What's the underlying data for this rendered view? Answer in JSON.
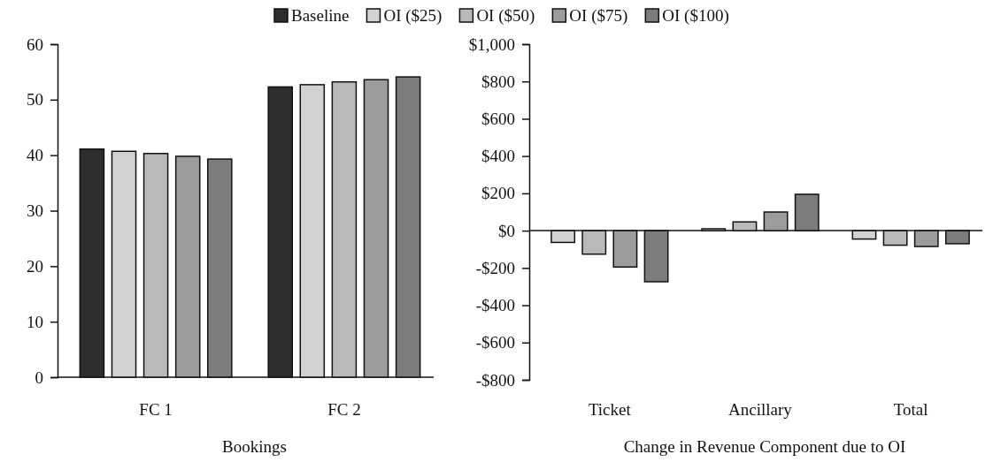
{
  "chart_data": [
    {
      "type": "bar",
      "xlabel": "Bookings",
      "categories": [
        "FC 1",
        "FC 2"
      ],
      "series": [
        {
          "name": "Baseline",
          "color": "#2e2e2e",
          "values": [
            41.1,
            52.3
          ]
        },
        {
          "name": "OI ($25)",
          "color": "#d2d2d2",
          "values": [
            40.7,
            52.7
          ]
        },
        {
          "name": "OI ($50)",
          "color": "#b9b9b9",
          "values": [
            40.3,
            53.2
          ]
        },
        {
          "name": "OI ($75)",
          "color": "#9c9c9c",
          "values": [
            39.8,
            53.6
          ]
        },
        {
          "name": "OI ($100)",
          "color": "#7c7c7c",
          "values": [
            39.3,
            54.1
          ]
        }
      ],
      "ylim": [
        0,
        60
      ],
      "yticks": [
        0,
        10,
        20,
        30,
        40,
        50,
        60
      ],
      "legend": "top"
    },
    {
      "type": "bar",
      "xlabel": "Change in Revenue Component due to OI",
      "categories": [
        "Ticket",
        "Ancillary",
        "Total"
      ],
      "series": [
        {
          "color": "#d2d2d2",
          "values": [
            -63,
            10,
            -45
          ]
        },
        {
          "color": "#b9b9b9",
          "values": [
            -126,
            47,
            -78
          ]
        },
        {
          "color": "#9c9c9c",
          "values": [
            -195,
            100,
            -85
          ]
        },
        {
          "color": "#7c7c7c",
          "values": [
            -274,
            195,
            -70
          ]
        }
      ],
      "ylim": [
        -800,
        1000
      ],
      "yticks": [
        {
          "value": -800,
          "label": "-$800"
        },
        {
          "value": -600,
          "label": "-$600"
        },
        {
          "value": -400,
          "label": "-$400"
        },
        {
          "value": -200,
          "label": "-$200"
        },
        {
          "value": 0,
          "label": "$0"
        },
        {
          "value": 200,
          "label": "$200"
        },
        {
          "value": 400,
          "label": "$400"
        },
        {
          "value": 600,
          "label": "$600"
        },
        {
          "value": 800,
          "label": "$800"
        },
        {
          "value": 1000,
          "label": "$1,000"
        }
      ]
    }
  ]
}
